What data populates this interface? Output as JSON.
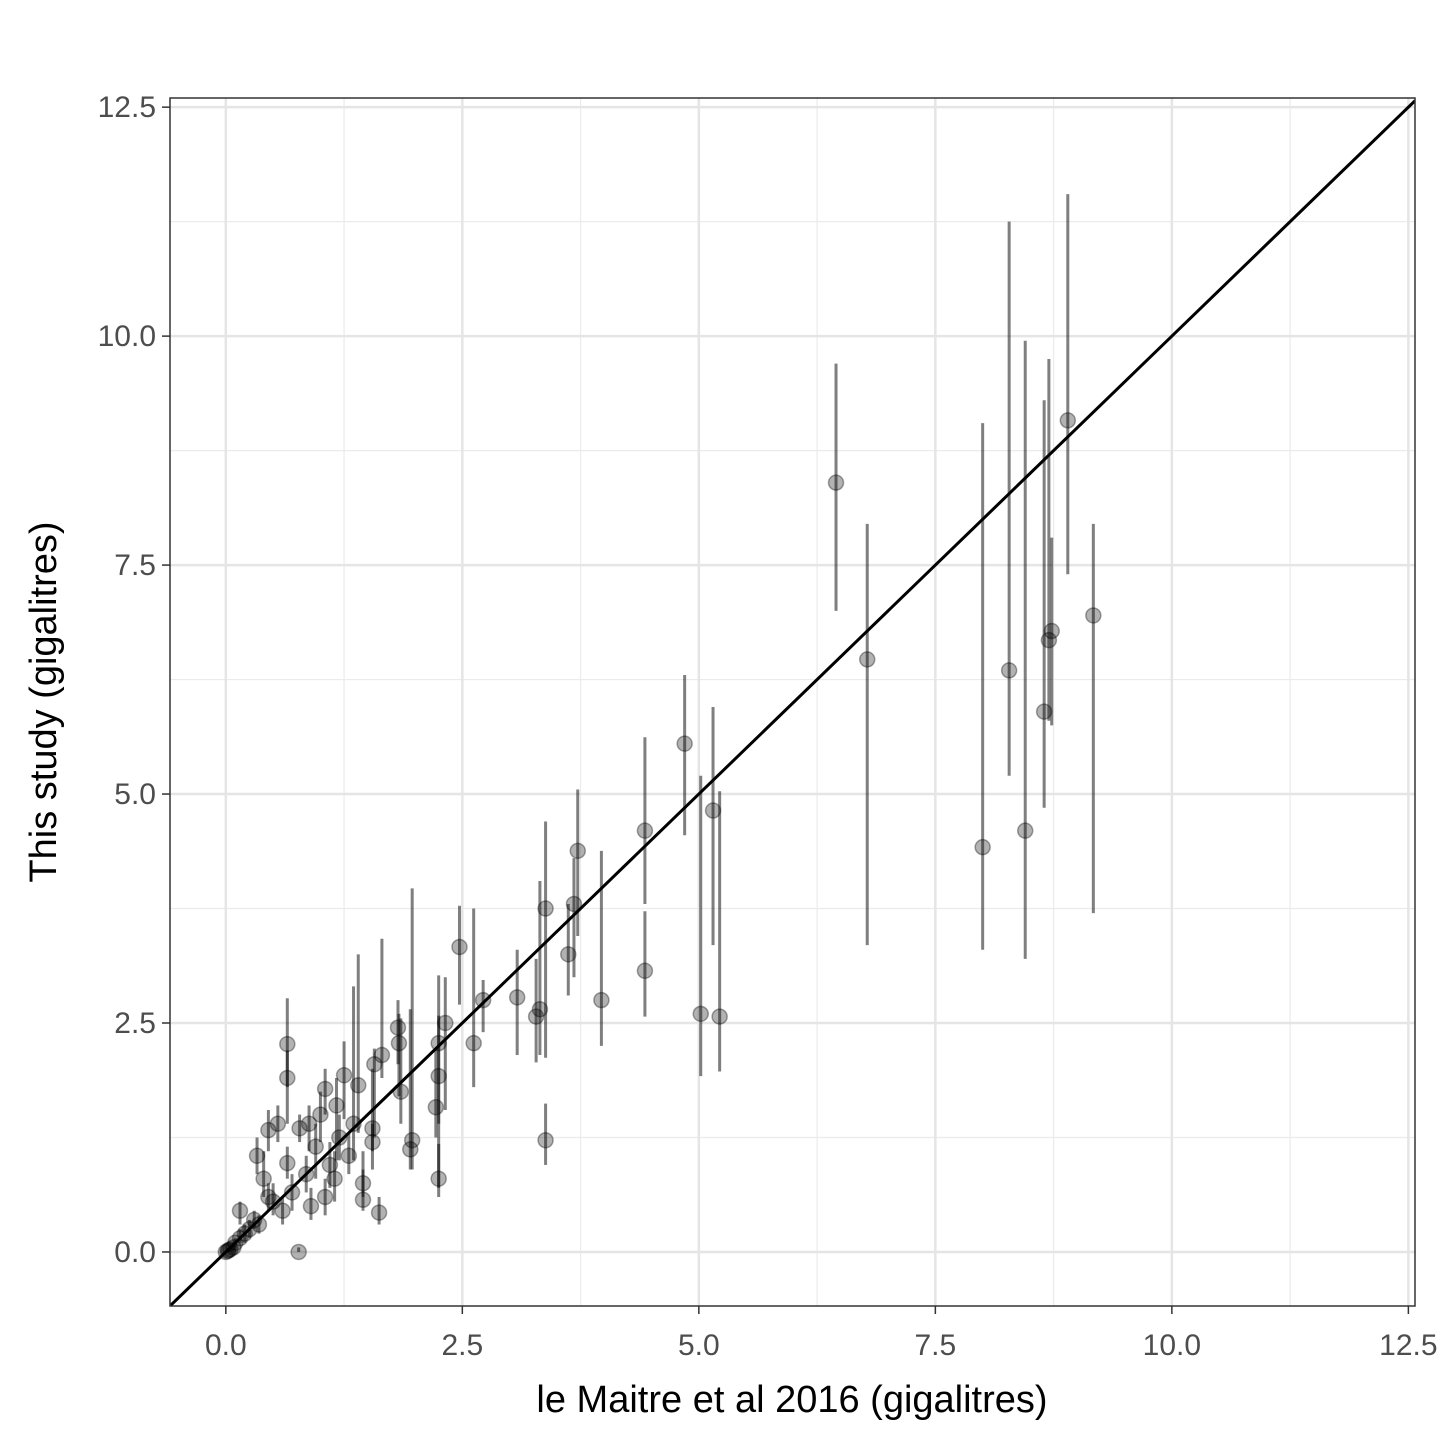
{
  "chart_data": {
    "type": "scatter",
    "x_label": "le Maitre et al 2016 (gigalitres)",
    "y_label": "This study (gigalitres)",
    "xlim": [
      -0.59,
      12.57
    ],
    "ylim": [
      -0.59,
      12.6
    ],
    "xticks": [
      {
        "value": 0,
        "label": "0.0"
      },
      2.5,
      {
        "value": 5,
        "label": "5.0"
      },
      7.5,
      {
        "value": 10,
        "label": "10.0"
      },
      12.5
    ],
    "yticks": [
      {
        "value": 0,
        "label": "0.0"
      },
      2.5,
      {
        "value": 5,
        "label": "5.0"
      },
      7.5,
      {
        "value": 10,
        "label": "10.0"
      },
      12.5
    ],
    "grid": true,
    "minor_grid": true,
    "identity_line": true,
    "color": "#000000",
    "x": [
      6.45,
      6.78,
      8.0,
      8.28,
      8.45,
      8.65,
      8.7,
      8.73,
      8.9,
      9.17,
      4.85,
      5.02,
      5.15,
      5.22,
      4.43,
      4.43,
      3.97,
      3.72,
      3.68,
      3.62,
      3.38,
      3.32,
      3.28,
      3.38,
      3.08,
      2.72,
      2.62,
      2.47,
      2.32,
      2.25,
      2.25,
      2.22,
      2.25,
      1.97,
      1.95,
      1.85,
      1.82,
      1.83,
      1.65,
      1.57,
      1.55,
      1.55,
      1.45,
      1.45,
      1.62,
      1.4,
      1.35,
      1.25,
      1.17,
      1.05,
      1.0,
      0.95,
      0.88,
      0.78,
      0.77,
      0.65,
      0.65,
      0.65,
      0.55,
      0.45,
      0.33,
      0.4,
      1.15,
      1.05,
      0.9,
      0.7,
      0.5,
      0.45,
      0.35,
      0.3,
      0.25,
      0.2,
      0.15,
      0.15,
      0.1,
      0.08,
      0.05,
      0.03,
      0.02,
      0.0,
      1.1,
      1.3,
      1.2,
      0.85,
      0.6
    ],
    "values": [
      8.4,
      6.47,
      4.42,
      6.35,
      4.6,
      5.9,
      6.68,
      6.78,
      9.08,
      6.95,
      5.55,
      2.6,
      4.82,
      2.57,
      4.6,
      3.07,
      2.75,
      4.38,
      3.8,
      3.25,
      3.75,
      2.65,
      2.57,
      1.22,
      2.78,
      2.75,
      2.28,
      3.33,
      2.5,
      2.28,
      1.92,
      1.58,
      0.8,
      1.22,
      1.12,
      1.75,
      2.45,
      2.28,
      2.15,
      2.05,
      1.35,
      1.2,
      0.75,
      0.57,
      0.43,
      1.82,
      1.4,
      1.93,
      1.6,
      1.78,
      1.5,
      1.15,
      1.4,
      1.35,
      0.0,
      0.97,
      2.27,
      1.9,
      1.4,
      1.33,
      1.05,
      0.8,
      0.8,
      0.6,
      0.5,
      0.65,
      0.55,
      0.6,
      0.3,
      0.35,
      0.25,
      0.2,
      0.45,
      0.15,
      0.1,
      0.05,
      0.03,
      0.02,
      0.01,
      0.0,
      0.95,
      1.05,
      1.25,
      0.85,
      0.45
    ],
    "error_low": [
      7.0,
      3.35,
      3.3,
      5.2,
      3.2,
      4.85,
      5.8,
      5.75,
      7.4,
      3.7,
      4.55,
      1.92,
      3.35,
      1.97,
      3.8,
      2.57,
      2.25,
      3.45,
      3.0,
      2.8,
      2.12,
      2.15,
      2.07,
      0.95,
      2.15,
      2.4,
      1.8,
      2.7,
      1.55,
      0.7,
      1.4,
      1.25,
      0.6,
      0.9,
      0.9,
      1.4,
      2.05,
      1.7,
      1.9,
      1.25,
      1.1,
      0.9,
      0.6,
      0.45,
      0.3,
      1.3,
      1.0,
      1.45,
      1.0,
      1.5,
      1.2,
      0.8,
      1.1,
      1.2,
      0.0,
      0.8,
      1.8,
      1.4,
      1.2,
      1.1,
      0.85,
      0.6,
      0.55,
      0.4,
      0.35,
      0.45,
      0.4,
      0.45,
      0.2,
      0.25,
      0.15,
      0.1,
      0.3,
      0.1,
      0.05,
      0.02,
      0.0,
      0.0,
      0.0,
      0.0,
      0.7,
      0.85,
      1.0,
      0.65,
      0.3
    ],
    "error_high": [
      9.7,
      7.95,
      9.05,
      11.25,
      9.95,
      9.3,
      9.75,
      7.8,
      11.55,
      7.95,
      6.3,
      5.2,
      5.95,
      5.03,
      5.62,
      3.72,
      4.38,
      5.05,
      4.3,
      3.8,
      4.7,
      4.05,
      3.2,
      1.62,
      3.3,
      2.97,
      3.75,
      3.78,
      3.0,
      3.02,
      2.58,
      2.22,
      1.18,
      3.97,
      2.65,
      2.55,
      2.75,
      2.6,
      3.42,
      2.22,
      2.0,
      1.4,
      1.1,
      0.9,
      0.6,
      3.25,
      2.9,
      2.3,
      1.9,
      2.0,
      1.75,
      1.4,
      1.6,
      1.5,
      0.05,
      1.15,
      2.77,
      2.2,
      1.6,
      1.55,
      1.25,
      1.1,
      1.1,
      0.8,
      0.7,
      0.85,
      0.75,
      0.75,
      0.4,
      0.45,
      0.35,
      0.3,
      0.55,
      0.25,
      0.15,
      0.1,
      0.06,
      0.04,
      0.02,
      0.01,
      1.2,
      1.3,
      1.5,
      1.05,
      0.6
    ]
  }
}
